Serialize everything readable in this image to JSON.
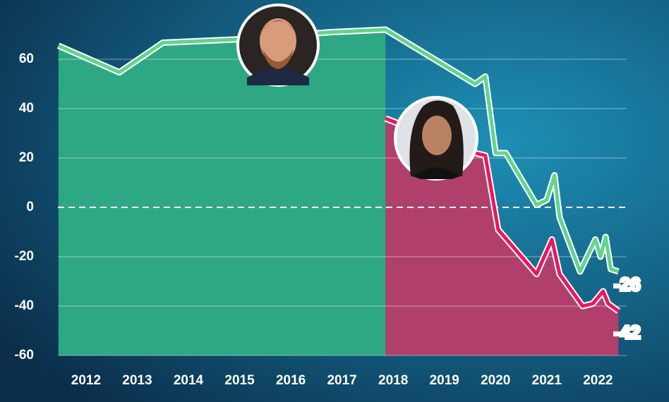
{
  "chart_data": {
    "type": "line",
    "xlim": [
      2011.45,
      2022.45
    ],
    "xticks": [
      2012,
      2013,
      2014,
      2015,
      2016,
      2017,
      2018,
      2019,
      2020,
      2021,
      2022
    ],
    "ylim": [
      -60,
      80
    ],
    "yticks": [
      -60,
      -40,
      -20,
      0,
      20,
      40,
      60
    ],
    "grid": true,
    "series": [
      {
        "color": "#63d48c",
        "fill": "#2ea884",
        "end_label": "-26",
        "x": [
          2011.46,
          2012.65,
          2013.5,
          2014.9,
          2016.8,
          2017.85,
          2019.6,
          2019.8,
          2020.0,
          2020.2,
          2020.8,
          2021.0,
          2021.15,
          2021.25,
          2021.65,
          2021.95,
          2022.05,
          2022.15,
          2022.25,
          2022.4
        ],
        "values": [
          65.5,
          54.7,
          66.7,
          68,
          71,
          72,
          50,
          53,
          22,
          22,
          1,
          3,
          13,
          -4,
          -26,
          -13,
          -20,
          -12,
          -25,
          -26
        ]
      },
      {
        "color": "#e8185f",
        "fill": "#b0406b",
        "end_label": "-42",
        "x": [
          2017.85,
          2019.6,
          2019.8,
          2020.05,
          2020.3,
          2020.8,
          2021.1,
          2021.25,
          2021.7,
          2021.9,
          2022.1,
          2022.2,
          2022.4
        ],
        "values": [
          36,
          22,
          21,
          -9,
          -15,
          -27,
          -13,
          -27,
          -40,
          -39,
          -34,
          -39,
          -42
        ]
      }
    ]
  }
}
